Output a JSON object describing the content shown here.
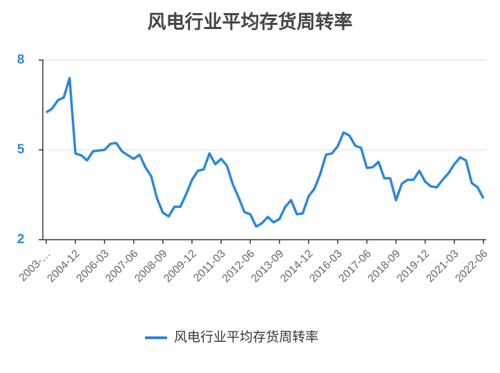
{
  "chart_data": {
    "type": "line",
    "title": "风电行业平均存货周转率",
    "categories": [
      "2003-…",
      null,
      null,
      null,
      null,
      "2004-12",
      null,
      null,
      null,
      null,
      "2006-03",
      null,
      null,
      null,
      null,
      "2007-06",
      null,
      null,
      null,
      null,
      "2008-09",
      null,
      null,
      null,
      null,
      "2009-12",
      null,
      null,
      null,
      null,
      "2011-03",
      null,
      null,
      null,
      null,
      "2012-06",
      null,
      null,
      null,
      null,
      "2013-09",
      null,
      null,
      null,
      null,
      "2014-12",
      null,
      null,
      null,
      null,
      "2016-03",
      null,
      null,
      null,
      null,
      "2017-06",
      null,
      null,
      null,
      null,
      "2018-09",
      null,
      null,
      null,
      null,
      "2019-12",
      null,
      null,
      null,
      null,
      "2021-03",
      null,
      null,
      null,
      null,
      "2022-06"
    ],
    "series": [
      {
        "name": "风电行业平均存货周转率",
        "color": "#2a86e0",
        "values": [
          6.25,
          6.38,
          6.66,
          6.75,
          7.4,
          4.88,
          4.82,
          4.65,
          4.95,
          4.98,
          5.0,
          5.2,
          5.23,
          4.95,
          4.82,
          4.7,
          4.84,
          4.42,
          4.12,
          3.38,
          2.9,
          2.78,
          3.1,
          3.1,
          3.52,
          4.0,
          4.3,
          4.35,
          4.88,
          4.52,
          4.7,
          4.47,
          3.85,
          3.41,
          2.92,
          2.85,
          2.44,
          2.55,
          2.76,
          2.58,
          2.69,
          3.1,
          3.32,
          2.85,
          2.88,
          3.45,
          3.7,
          4.19,
          4.84,
          4.88,
          5.12,
          5.58,
          5.48,
          5.14,
          5.07,
          4.4,
          4.42,
          4.6,
          4.05,
          4.05,
          3.32,
          3.87,
          4.0,
          4.0,
          4.3,
          3.94,
          3.78,
          3.75,
          4.0,
          4.22,
          4.52,
          4.75,
          4.65,
          3.89,
          3.75,
          3.38
        ]
      }
    ],
    "ylim": [
      2,
      8
    ],
    "yticks": [
      2,
      5,
      8
    ],
    "grid": true
  }
}
